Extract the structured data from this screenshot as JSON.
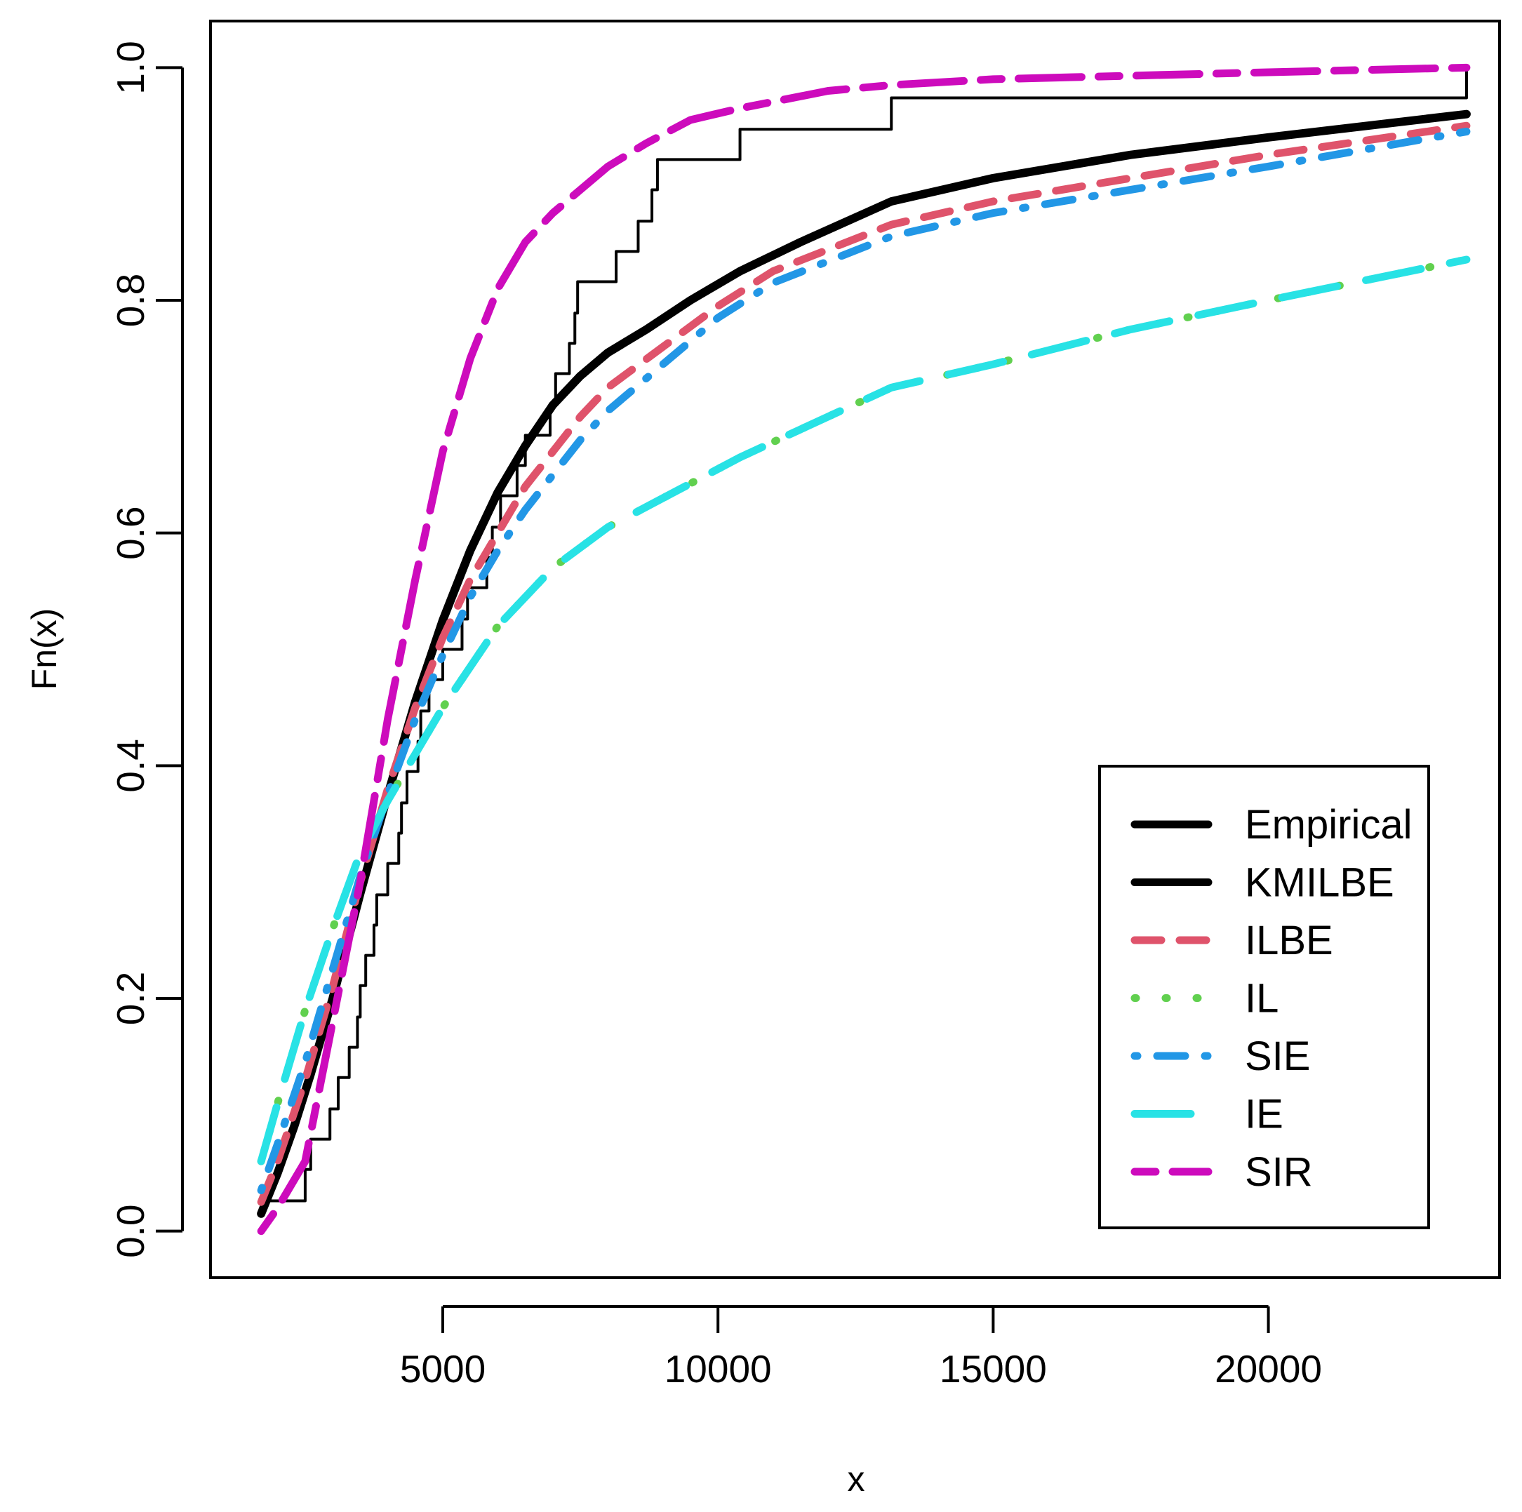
{
  "chart_data": {
    "type": "line",
    "xlabel": "x",
    "ylabel": "Fn(x)",
    "xlim": [
      780,
      24200
    ],
    "ylim": [
      -0.04,
      1.04
    ],
    "xticks": [
      5000,
      10000,
      15000,
      20000
    ],
    "xtick_labels": [
      "5000",
      "10000",
      "15000",
      "20000"
    ],
    "yticks": [
      0.0,
      0.2,
      0.4,
      0.6,
      0.8,
      1.0
    ],
    "ytick_labels": [
      "0.0",
      "0.2",
      "0.4",
      "0.6",
      "0.8",
      "1.0"
    ],
    "grid": false,
    "legend_position": "bottom-right",
    "legend": [
      {
        "label": "Empirical",
        "color": "#000000",
        "dash": "solid"
      },
      {
        "label": "KMILBE",
        "color": "#000000",
        "dash": "solid"
      },
      {
        "label": "ILBE",
        "color": "#DF536B",
        "dash": "dashed"
      },
      {
        "label": "IL",
        "color": "#61D04F",
        "dash": "dotted"
      },
      {
        "label": "SIE",
        "color": "#2297E6",
        "dash": "dotdash"
      },
      {
        "label": "IE",
        "color": "#28E2E5",
        "dash": "longdash"
      },
      {
        "label": "SIR",
        "color": "#CD0BBC",
        "dash": "twodash"
      }
    ],
    "series": [
      {
        "color": "#000000",
        "step": true,
        "x": [
          1700,
          2500,
          2600,
          2950,
          3100,
          3300,
          3450,
          3500,
          3600,
          3750,
          3800,
          4000,
          4200,
          4250,
          4350,
          4550,
          4600,
          4750,
          5000,
          5350,
          5450,
          5800,
          5900,
          6050,
          6350,
          6500,
          6950,
          7050,
          7300,
          7400,
          7450,
          7550,
          8150,
          8550,
          8800,
          8900,
          8950,
          10400,
          13150,
          23600
        ],
        "y": [
          0.026,
          0.053,
          0.079,
          0.105,
          0.132,
          0.158,
          0.184,
          0.211,
          0.237,
          0.263,
          0.289,
          0.316,
          0.342,
          0.368,
          0.395,
          0.421,
          0.447,
          0.474,
          0.5,
          0.526,
          0.553,
          0.579,
          0.605,
          0.632,
          0.658,
          0.684,
          0.711,
          0.737,
          0.763,
          0.789,
          0.816,
          0.816,
          0.842,
          0.868,
          0.895,
          0.921,
          0.921,
          0.947,
          0.974,
          1.0
        ]
      },
      {
        "color": "#000000",
        "x": [
          1700,
          2000,
          2300,
          2600,
          3000,
          3500,
          4000,
          4500,
          5000,
          5500,
          6000,
          6500,
          7000,
          7500,
          8000,
          8700,
          9500,
          10400,
          11500,
          13150,
          15000,
          17500,
          20000,
          23600
        ],
        "y": [
          0.015,
          0.05,
          0.09,
          0.135,
          0.2,
          0.29,
          0.375,
          0.455,
          0.525,
          0.585,
          0.635,
          0.675,
          0.71,
          0.735,
          0.755,
          0.775,
          0.8,
          0.825,
          0.85,
          0.885,
          0.905,
          0.925,
          0.94,
          0.96
        ]
      },
      {
        "color": "#DF536B",
        "dash": "38,26",
        "x": [
          1700,
          2000,
          2500,
          3000,
          3500,
          4000,
          4500,
          5000,
          5500,
          6000,
          6500,
          7000,
          7500,
          8000,
          9000,
          10000,
          11000,
          13150,
          15000,
          17500,
          20000,
          23600
        ],
        "y": [
          0.025,
          0.06,
          0.13,
          0.21,
          0.3,
          0.38,
          0.45,
          0.51,
          0.56,
          0.6,
          0.64,
          0.67,
          0.7,
          0.725,
          0.76,
          0.795,
          0.825,
          0.865,
          0.885,
          0.905,
          0.925,
          0.95
        ]
      },
      {
        "color": "#61D04F",
        "dash": "2,42",
        "x": [
          1700,
          2000,
          2500,
          3000,
          3500,
          4000,
          4500,
          5000,
          6000,
          7000,
          8000,
          9000,
          10400,
          12000,
          13150,
          15000,
          17500,
          20000,
          23600
        ],
        "y": [
          0.06,
          0.11,
          0.19,
          0.26,
          0.325,
          0.37,
          0.41,
          0.45,
          0.52,
          0.57,
          0.605,
          0.63,
          0.665,
          0.7,
          0.725,
          0.745,
          0.775,
          0.8,
          0.835
        ]
      },
      {
        "color": "#2297E6",
        "dash": "4,28,40,28",
        "x": [
          1700,
          2000,
          2500,
          3000,
          3500,
          4000,
          4500,
          5000,
          5500,
          6000,
          6500,
          7000,
          7500,
          8000,
          9000,
          10000,
          11000,
          13150,
          15000,
          17500,
          20000,
          23600
        ],
        "y": [
          0.035,
          0.075,
          0.145,
          0.225,
          0.305,
          0.375,
          0.44,
          0.495,
          0.545,
          0.585,
          0.62,
          0.65,
          0.68,
          0.705,
          0.745,
          0.785,
          0.815,
          0.855,
          0.875,
          0.895,
          0.915,
          0.945
        ]
      },
      {
        "color": "#28E2E5",
        "dash": "80,42",
        "x": [
          1700,
          2000,
          2500,
          3000,
          3500,
          4000,
          4500,
          5000,
          6000,
          7000,
          8000,
          9000,
          10400,
          12000,
          13150,
          15000,
          17500,
          20000,
          23600
        ],
        "y": [
          0.06,
          0.11,
          0.19,
          0.26,
          0.325,
          0.37,
          0.41,
          0.45,
          0.52,
          0.57,
          0.605,
          0.63,
          0.665,
          0.7,
          0.725,
          0.745,
          0.775,
          0.8,
          0.835
        ]
      },
      {
        "color": "#CD0BBC",
        "dash": "30,24,90,24",
        "x": [
          1700,
          2000,
          2500,
          3000,
          3500,
          4000,
          4500,
          5000,
          5500,
          6000,
          6500,
          7000,
          7500,
          8000,
          8700,
          9500,
          10400,
          12000,
          13150,
          15000,
          17500,
          20000,
          23600
        ],
        "y": [
          0.0,
          0.02,
          0.06,
          0.18,
          0.3,
          0.44,
          0.56,
          0.67,
          0.75,
          0.81,
          0.85,
          0.875,
          0.895,
          0.915,
          0.935,
          0.955,
          0.965,
          0.98,
          0.985,
          0.99,
          0.993,
          0.996,
          1.0
        ]
      }
    ]
  }
}
